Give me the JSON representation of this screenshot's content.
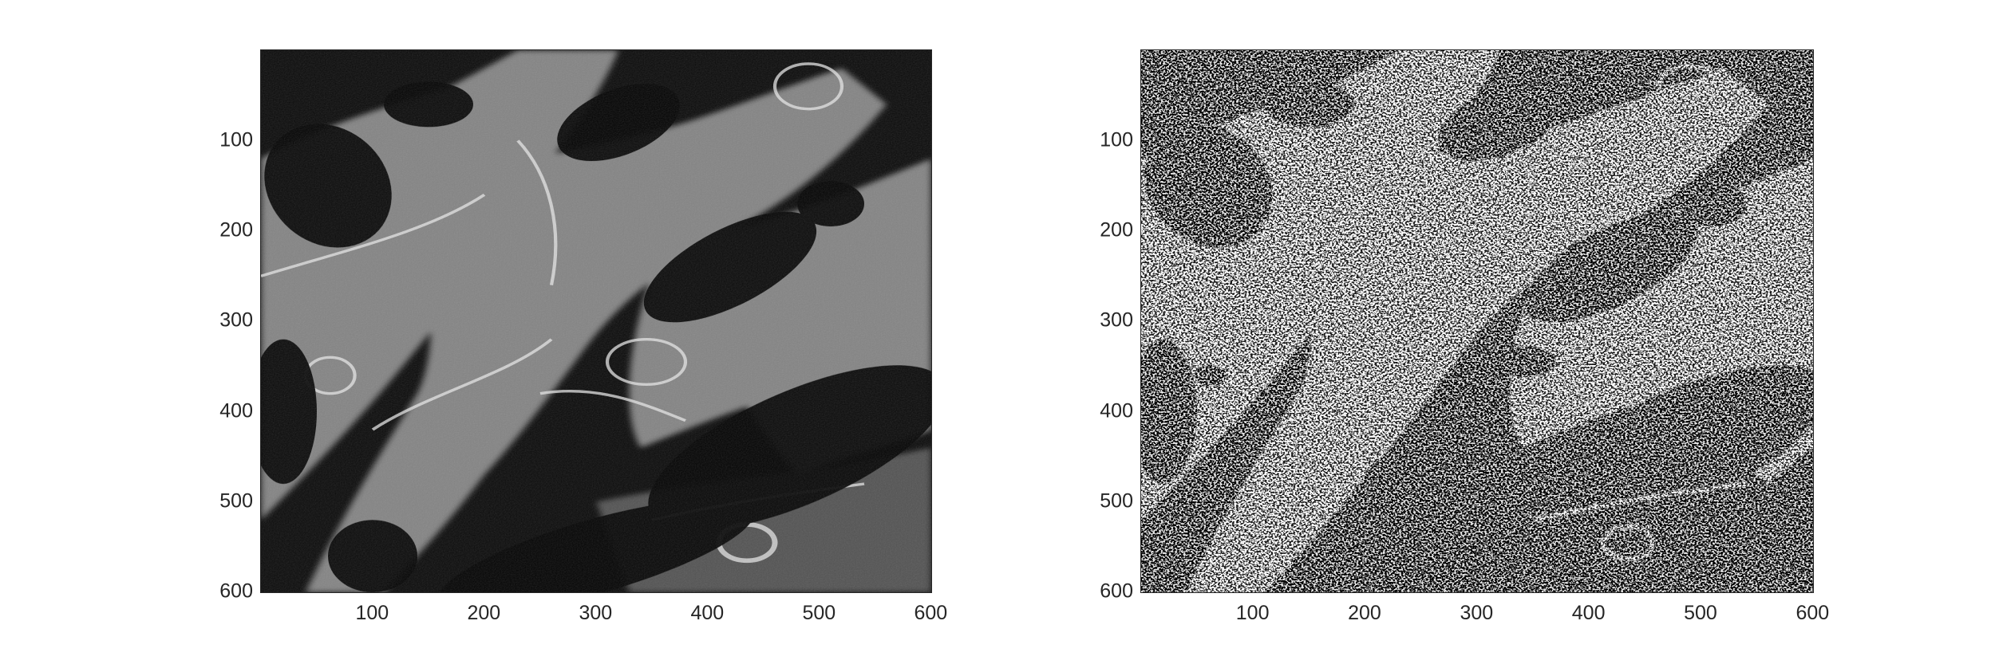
{
  "figure": {
    "panels": [
      {
        "name": "original-grayscale-image",
        "description_kind": "grayscale fluorescence micrograph",
        "xlim": [
          0.5,
          600.5
        ],
        "ylim": [
          0.5,
          600.5
        ],
        "xticks": [
          "100",
          "200",
          "300",
          "400",
          "500",
          "600"
        ],
        "yticks": [
          "100",
          "200",
          "300",
          "400",
          "500",
          "600"
        ]
      },
      {
        "name": "binarized-image",
        "description_kind": "thresholded binary mask",
        "xlim": [
          0.5,
          600.5
        ],
        "ylim": [
          0.5,
          600.5
        ],
        "xticks": [
          "100",
          "200",
          "300",
          "400",
          "500",
          "600"
        ],
        "yticks": [
          "100",
          "200",
          "300",
          "400",
          "500",
          "600"
        ]
      }
    ],
    "colors": {
      "axis": "#262626",
      "background": "#000000",
      "foreground": "#ffffff"
    }
  }
}
